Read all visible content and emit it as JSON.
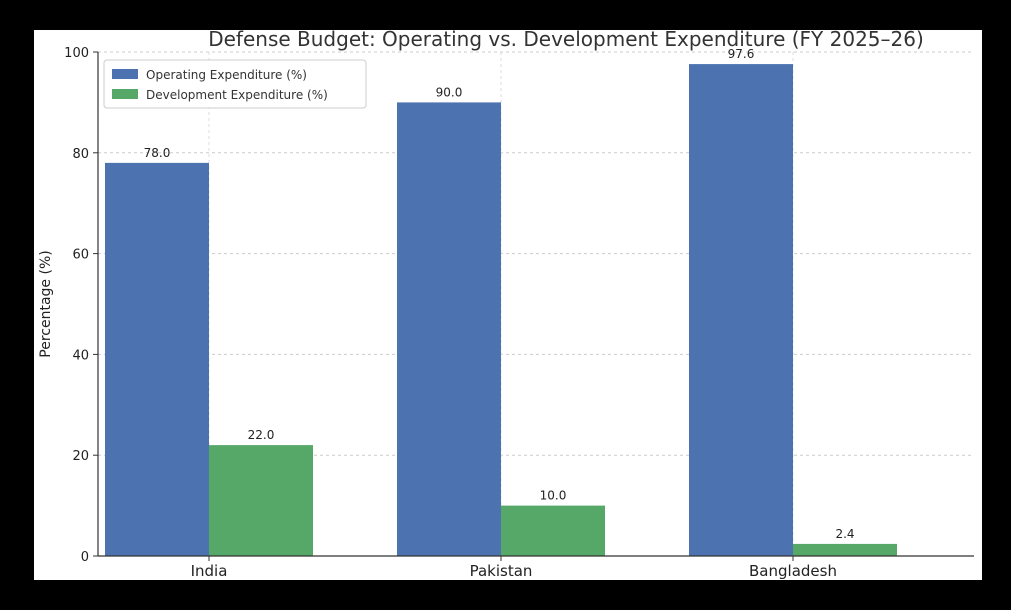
{
  "chart_data": {
    "type": "bar",
    "title": "Defense Budget: Operating vs. Development Expenditure (FY 2025–26)",
    "xlabel": "",
    "ylabel": "Percentage (%)",
    "ylim": [
      0,
      100
    ],
    "yticks": [
      0,
      20,
      40,
      60,
      80,
      100
    ],
    "categories": [
      "India",
      "Pakistan",
      "Bangladesh"
    ],
    "series": [
      {
        "name": "Operating Expenditure (%)",
        "values": [
          78.0,
          90.0,
          97.6
        ],
        "color": "#4c72b0",
        "labels": [
          "78.0",
          "90.0",
          "97.6"
        ]
      },
      {
        "name": "Development Expenditure (%)",
        "values": [
          22.0,
          10.0,
          2.4
        ],
        "color": "#55a868",
        "labels": [
          "22.0",
          "10.0",
          "2.4"
        ]
      }
    ],
    "grid": true,
    "legend": "top-left"
  }
}
